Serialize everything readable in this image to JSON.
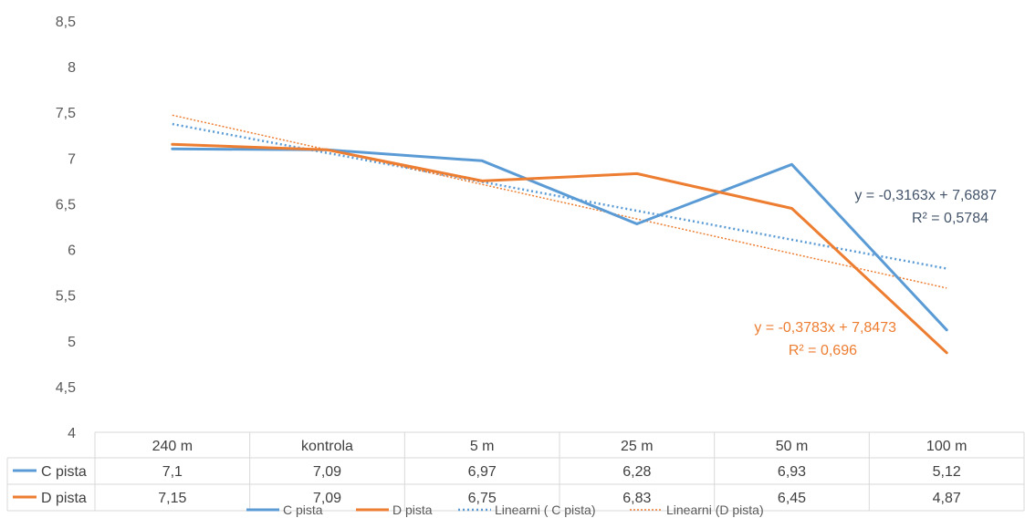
{
  "chart_data": {
    "type": "line",
    "categories": [
      "240 m",
      "kontrola",
      "5 m",
      "25 m",
      "50 m",
      "100 m"
    ],
    "y_axis": {
      "min": 4,
      "max": 8.5,
      "step": 0.5,
      "tick_labels": [
        "4",
        "4,5",
        "5",
        "5,5",
        "6",
        "6,5",
        "7",
        "7,5",
        "8",
        "8,5"
      ]
    },
    "grid": false,
    "legend_position": "bottom",
    "series": [
      {
        "name": "C pista",
        "color": "#5B9BD5",
        "values": [
          7.1,
          7.09,
          6.97,
          6.28,
          6.93,
          5.12
        ],
        "value_labels": [
          "7,1",
          "7,09",
          "6,97",
          "6,28",
          "6,93",
          "5,12"
        ]
      },
      {
        "name": "D pista",
        "color": "#ED7D31",
        "values": [
          7.15,
          7.09,
          6.75,
          6.83,
          6.45,
          4.87
        ],
        "value_labels": [
          "7,15",
          "7,09",
          "6,75",
          "6,83",
          "6,45",
          "4,87"
        ]
      }
    ],
    "trendlines": [
      {
        "name": "Linearni ( C pista)",
        "series": "C pista",
        "color": "#5B9BD5",
        "slope": -0.3163,
        "intercept": 7.6887,
        "equation": "y = -0,3163x + 7,6887",
        "r2": "R² = 0,5784"
      },
      {
        "name": "Linearni (D pista)",
        "series": "D pista",
        "color": "#ED7D31",
        "slope": -0.3783,
        "intercept": 7.8473,
        "equation": "y = -0,3783x + 7,8473",
        "r2": "R² = 0,696"
      }
    ]
  }
}
